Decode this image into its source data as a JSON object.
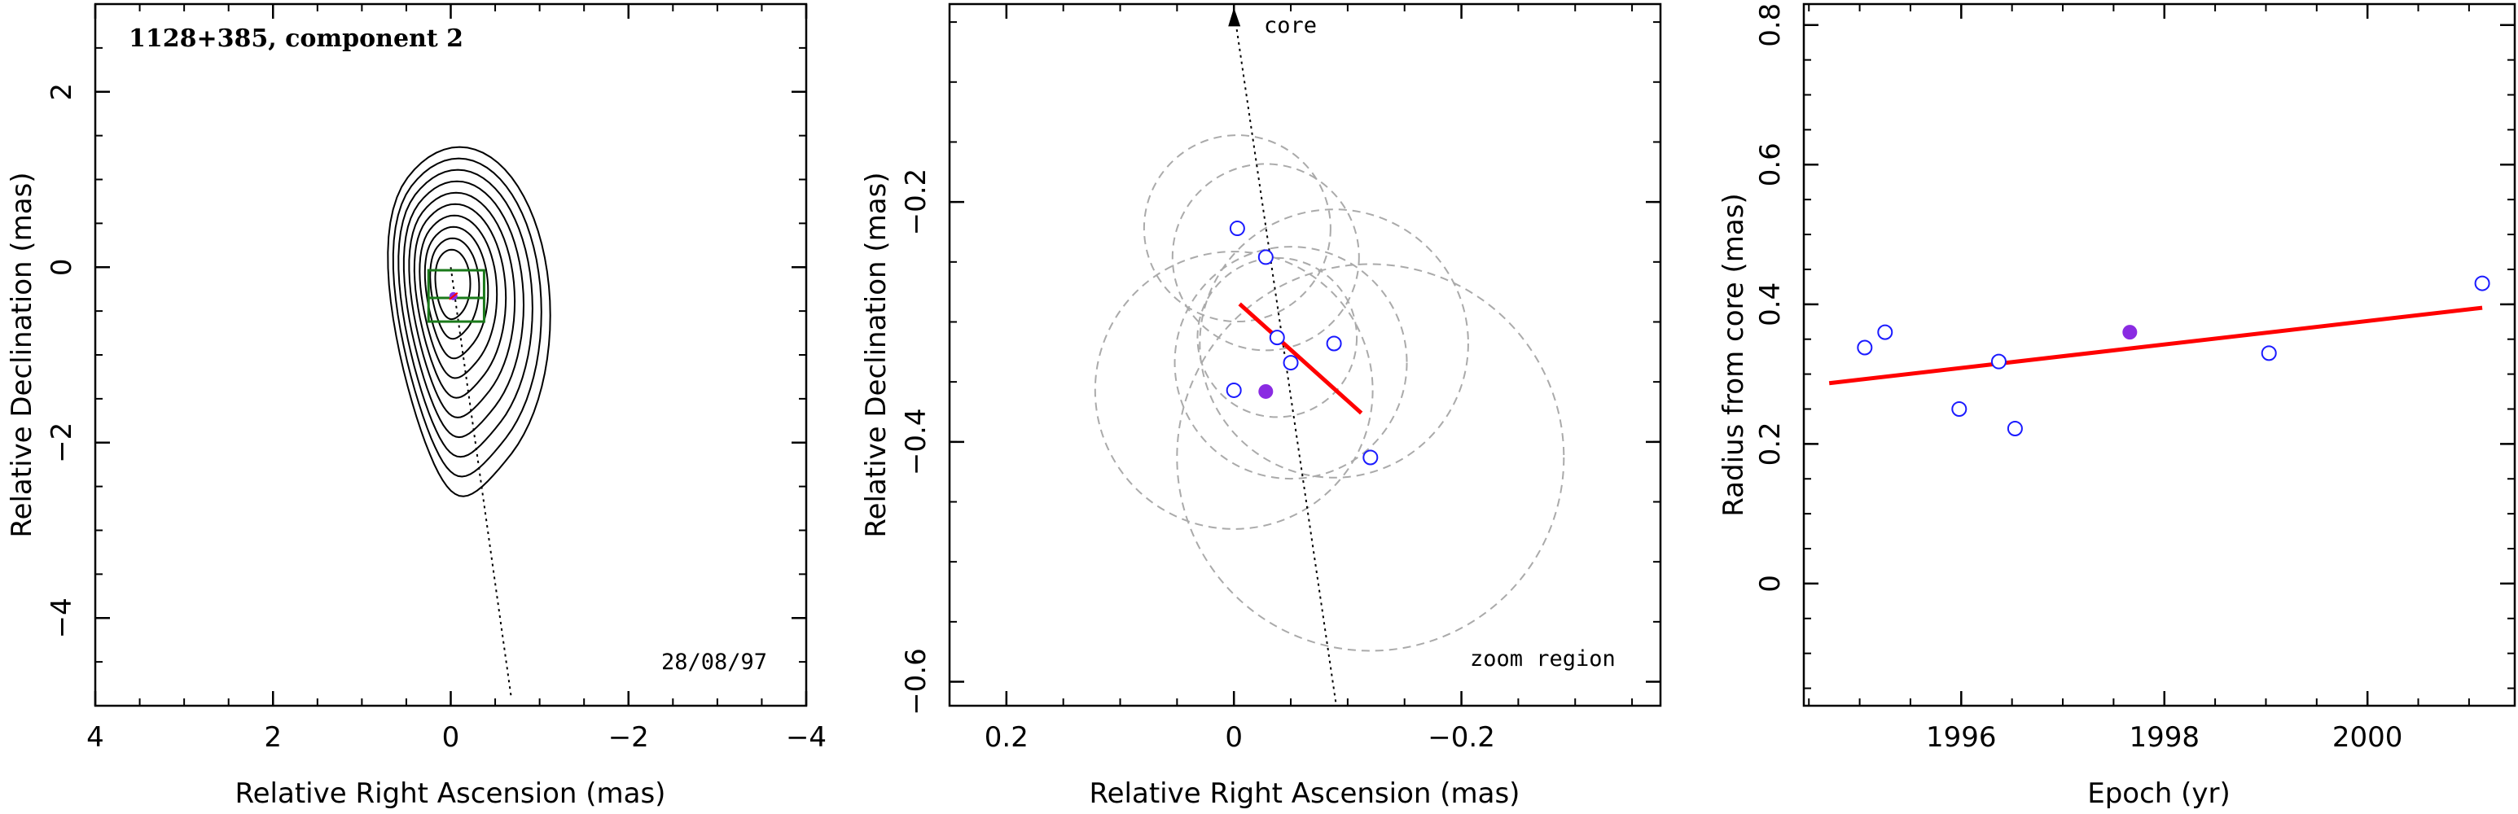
{
  "chart_data": [
    {
      "type": "contour",
      "title": "1128+385, component 2",
      "date_note": "28/08/97",
      "xlabel": "Relative Right Ascension (mas)",
      "ylabel": "Relative Declination (mas)",
      "xlim": [
        4,
        -4
      ],
      "ylim": [
        -5,
        3
      ],
      "xticks": [
        {
          "v": 4,
          "t": "4"
        },
        {
          "v": 2,
          "t": "2"
        },
        {
          "v": 0,
          "t": "0"
        },
        {
          "v": -2,
          "t": "−2"
        },
        {
          "v": -4,
          "t": "−4"
        }
      ],
      "yticks": [
        {
          "v": 2,
          "t": "2"
        },
        {
          "v": 0,
          "t": "0"
        },
        {
          "v": -2,
          "t": "−2"
        },
        {
          "v": -4,
          "t": "−4"
        }
      ],
      "component_position": {
        "ra": -0.03,
        "dec": -0.33
      },
      "core_direction_line": {
        "from": [
          0,
          0
        ],
        "to": [
          -0.68,
          -4.9
        ]
      },
      "contour_levels": 10,
      "colors": {
        "contour": "#000000",
        "zoom_box": "#1a7a1a",
        "component": "#8a2be2",
        "track": "#ff0000"
      }
    },
    {
      "type": "scatter",
      "xlabel": "Relative Right Ascension (mas)",
      "ylabel": "Relative Declination (mas)",
      "xlim": [
        0.25,
        -0.375
      ],
      "ylim": [
        -0.62,
        -0.035
      ],
      "xticks": [
        {
          "v": 0.2,
          "t": "0.2"
        },
        {
          "v": 0,
          "t": "0"
        },
        {
          "v": -0.2,
          "t": "−0.2"
        }
      ],
      "yticks": [
        {
          "v": -0.2,
          "t": "−0.2"
        },
        {
          "v": -0.4,
          "t": "−0.4"
        },
        {
          "v": -0.6,
          "t": "−0.6"
        }
      ],
      "core_label": "core",
      "region_label": "zoom region",
      "points_open": [
        {
          "x": -0.003,
          "y": -0.222
        },
        {
          "x": -0.028,
          "y": -0.246
        },
        {
          "x": -0.038,
          "y": -0.313
        },
        {
          "x": -0.05,
          "y": -0.334
        },
        {
          "x": -0.088,
          "y": -0.318
        },
        {
          "x": 0.0,
          "y": -0.357
        },
        {
          "x": -0.12,
          "y": -0.413
        }
      ],
      "point_filled": {
        "x": -0.028,
        "y": -0.358
      },
      "track": {
        "x": [
          -0.005,
          -0.112
        ],
        "y": [
          -0.285,
          -0.376
        ]
      },
      "core_line": {
        "x": [
          0.0,
          -0.09
        ],
        "y": [
          -0.04,
          -0.62
        ]
      },
      "error_circles": [
        {
          "x": -0.003,
          "y": -0.222,
          "r": 0.082
        },
        {
          "x": -0.028,
          "y": -0.246,
          "r": 0.082
        },
        {
          "x": -0.038,
          "y": -0.313,
          "r": 0.07
        },
        {
          "x": -0.05,
          "y": -0.334,
          "r": 0.102
        },
        {
          "x": -0.088,
          "y": -0.318,
          "r": 0.118
        },
        {
          "x": 0.0,
          "y": -0.357,
          "r": 0.122
        },
        {
          "x": -0.12,
          "y": -0.413,
          "r": 0.17
        }
      ],
      "colors": {
        "open": "#1a1aff",
        "filled": "#8a2be2",
        "track": "#ff0000",
        "circles": "#aaaaaa"
      }
    },
    {
      "type": "scatter",
      "xlabel": "Epoch (yr)",
      "ylabel": "Radius from core (mas)",
      "xlim": [
        1994.45,
        2001.45
      ],
      "ylim": [
        -0.175,
        0.83
      ],
      "xticks": [
        {
          "v": 1996,
          "t": "1996"
        },
        {
          "v": 1998,
          "t": "1998"
        },
        {
          "v": 2000,
          "t": "2000"
        }
      ],
      "yticks": [
        {
          "v": 0,
          "t": "0"
        },
        {
          "v": 0.2,
          "t": "0.2"
        },
        {
          "v": 0.4,
          "t": "0.4"
        },
        {
          "v": 0.6,
          "t": "0.6"
        },
        {
          "v": 0.8,
          "t": "0.8"
        }
      ],
      "points_open": [
        {
          "x": 1995.05,
          "y": 0.338
        },
        {
          "x": 1995.25,
          "y": 0.36
        },
        {
          "x": 1995.98,
          "y": 0.25
        },
        {
          "x": 1996.37,
          "y": 0.318
        },
        {
          "x": 1996.53,
          "y": 0.222
        },
        {
          "x": 1999.03,
          "y": 0.33
        },
        {
          "x": 2001.13,
          "y": 0.43
        }
      ],
      "point_filled": {
        "x": 1997.66,
        "y": 0.36
      },
      "fit_line": {
        "x": [
          1994.7,
          2001.13
        ],
        "y": [
          0.287,
          0.395
        ]
      },
      "colors": {
        "open": "#1a1aff",
        "filled": "#8a2be2",
        "fit": "#ff0000"
      }
    }
  ]
}
